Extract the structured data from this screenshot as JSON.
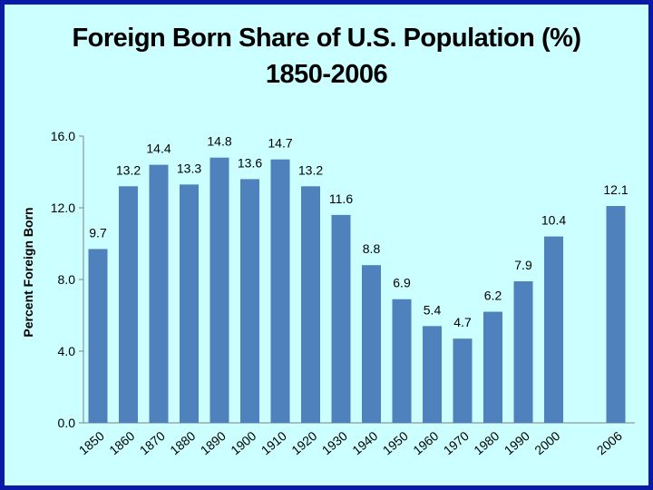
{
  "chart_data": {
    "type": "bar",
    "title": "Foreign Born Share of U.S. Population (%)",
    "subtitle": "1850-2006",
    "xlabel": "",
    "ylabel": "Percent Foreign Born",
    "ylim": [
      0,
      16
    ],
    "yticks": [
      "0.0",
      "4.0",
      "8.0",
      "12.0",
      "16.0"
    ],
    "categories": [
      "1850",
      "1860",
      "1870",
      "1880",
      "1890",
      "1900",
      "1910",
      "1920",
      "1930",
      "1940",
      "1950",
      "1960",
      "1970",
      "1980",
      "1990",
      "2000",
      "2006"
    ],
    "values": [
      9.7,
      13.2,
      14.4,
      13.3,
      14.8,
      13.6,
      14.7,
      13.2,
      11.6,
      8.8,
      6.9,
      5.4,
      4.7,
      6.2,
      7.9,
      10.4,
      12.1
    ],
    "value_labels": [
      "9.7",
      "13.2",
      "14.4",
      "13.3",
      "14.8",
      "13.6",
      "14.7",
      "13.2",
      "11.6",
      "8.8",
      "6.9",
      "5.4",
      "4.7",
      "6.2",
      "7.9",
      "10.4",
      "12.1"
    ],
    "grid": false,
    "legend": "none",
    "colors": {
      "bar": "#4f81bd",
      "background": "#ccffff",
      "frame": "#0a1aa8",
      "axis": "#7f7f7f"
    }
  }
}
